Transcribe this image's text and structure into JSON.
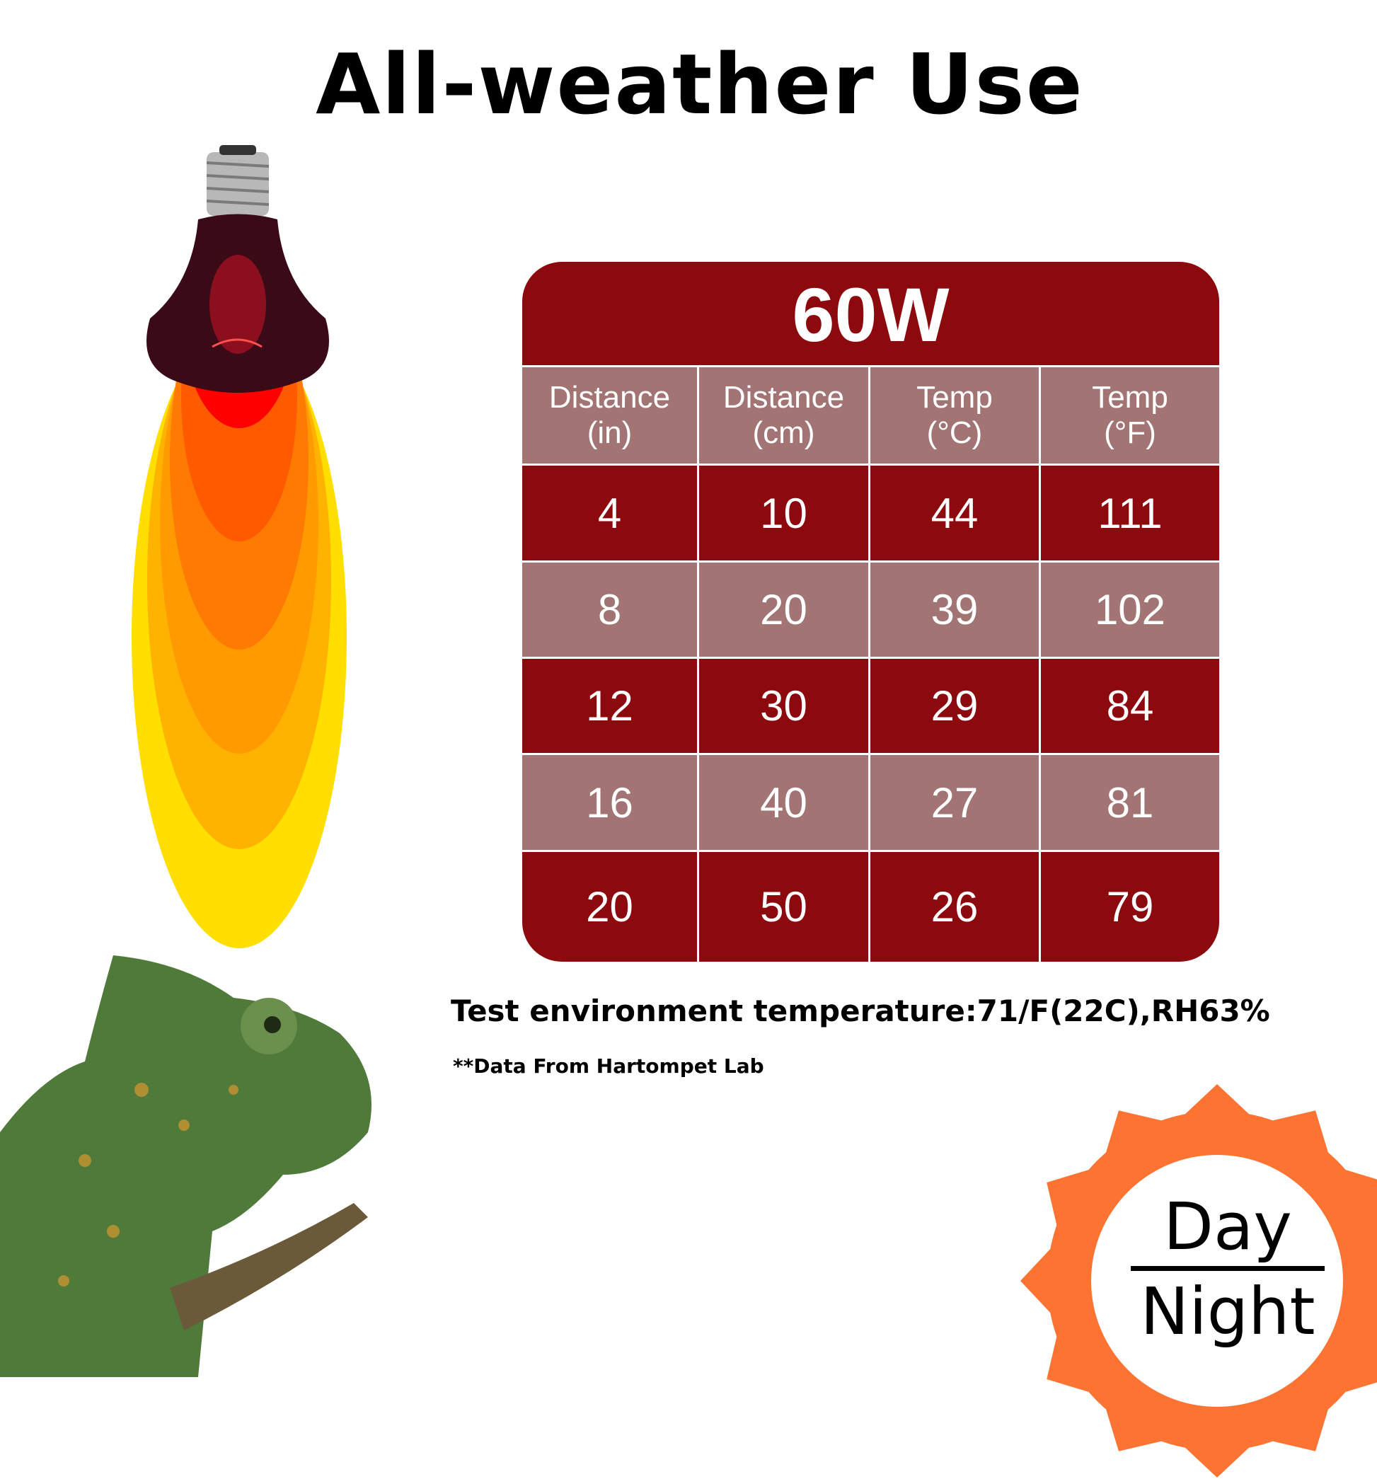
{
  "title": "All-weather Use",
  "table": {
    "wattage": "60W",
    "headers": [
      {
        "line1": "Distance",
        "line2": "(in)"
      },
      {
        "line1": "Distance",
        "line2": "(cm)"
      },
      {
        "line1": "Temp",
        "line2": "(°C)"
      },
      {
        "line1": "Temp",
        "line2": "(°F)"
      }
    ],
    "rows": [
      [
        "4",
        "10",
        "44",
        "111"
      ],
      [
        "8",
        "20",
        "39",
        "102"
      ],
      [
        "12",
        "30",
        "29",
        "84"
      ],
      [
        "16",
        "40",
        "27",
        "81"
      ],
      [
        "20",
        "50",
        "26",
        "79"
      ]
    ]
  },
  "test_environment": "Test environment temperature:71/F(22C),RH63%",
  "data_source": "**Data From Hartompet Lab",
  "badge": {
    "top": "Day",
    "bottom": "Night"
  },
  "colors": {
    "dark_red": "#8c090d",
    "muted_rose": "#a27474",
    "sun_orange": "#fd7332"
  }
}
